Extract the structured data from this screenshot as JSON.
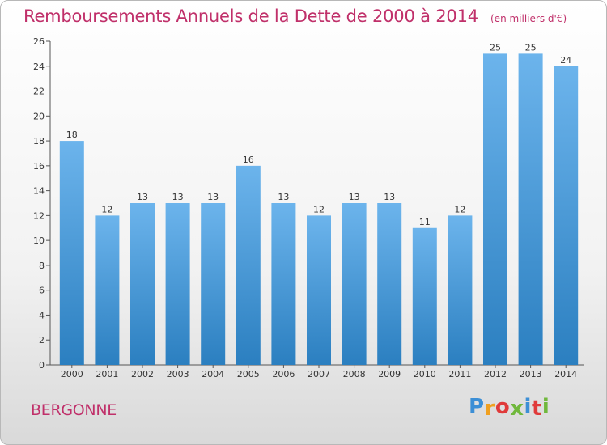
{
  "header": {
    "title": "Remboursements Annuels de la Dette de 2000 à 2014",
    "subtitle": "(en milliers d'€)"
  },
  "footer": {
    "commune": "BERGONNE",
    "logo_letters": [
      "P",
      "r",
      "o",
      "x",
      "i",
      "t",
      "i"
    ],
    "logo_colors": [
      "#3c8fd6",
      "#f0a020",
      "#e03a3a",
      "#70b83c",
      "#3c8fd6",
      "#e03a3a",
      "#70b83c"
    ]
  },
  "colors": {
    "bar_light": "#6cb4ec",
    "bar_dark": "#2b7fc0",
    "title": "#c0306a",
    "axis": "#555555"
  },
  "chart_data": {
    "type": "bar",
    "title": "Remboursements Annuels de la Dette de 2000 à 2014",
    "xlabel": "",
    "ylabel": "en milliers d'€",
    "categories": [
      "2000",
      "2001",
      "2002",
      "2003",
      "2004",
      "2005",
      "2006",
      "2007",
      "2008",
      "2009",
      "2010",
      "2011",
      "2012",
      "2013",
      "2014"
    ],
    "values": [
      18,
      12,
      13,
      13,
      13,
      16,
      13,
      12,
      13,
      13,
      11,
      12,
      25,
      25,
      24
    ],
    "ylim": [
      0,
      26
    ],
    "yticks": [
      0,
      2,
      4,
      6,
      8,
      10,
      12,
      14,
      16,
      18,
      20,
      22,
      24,
      26
    ],
    "grid": false,
    "legend": "none"
  }
}
